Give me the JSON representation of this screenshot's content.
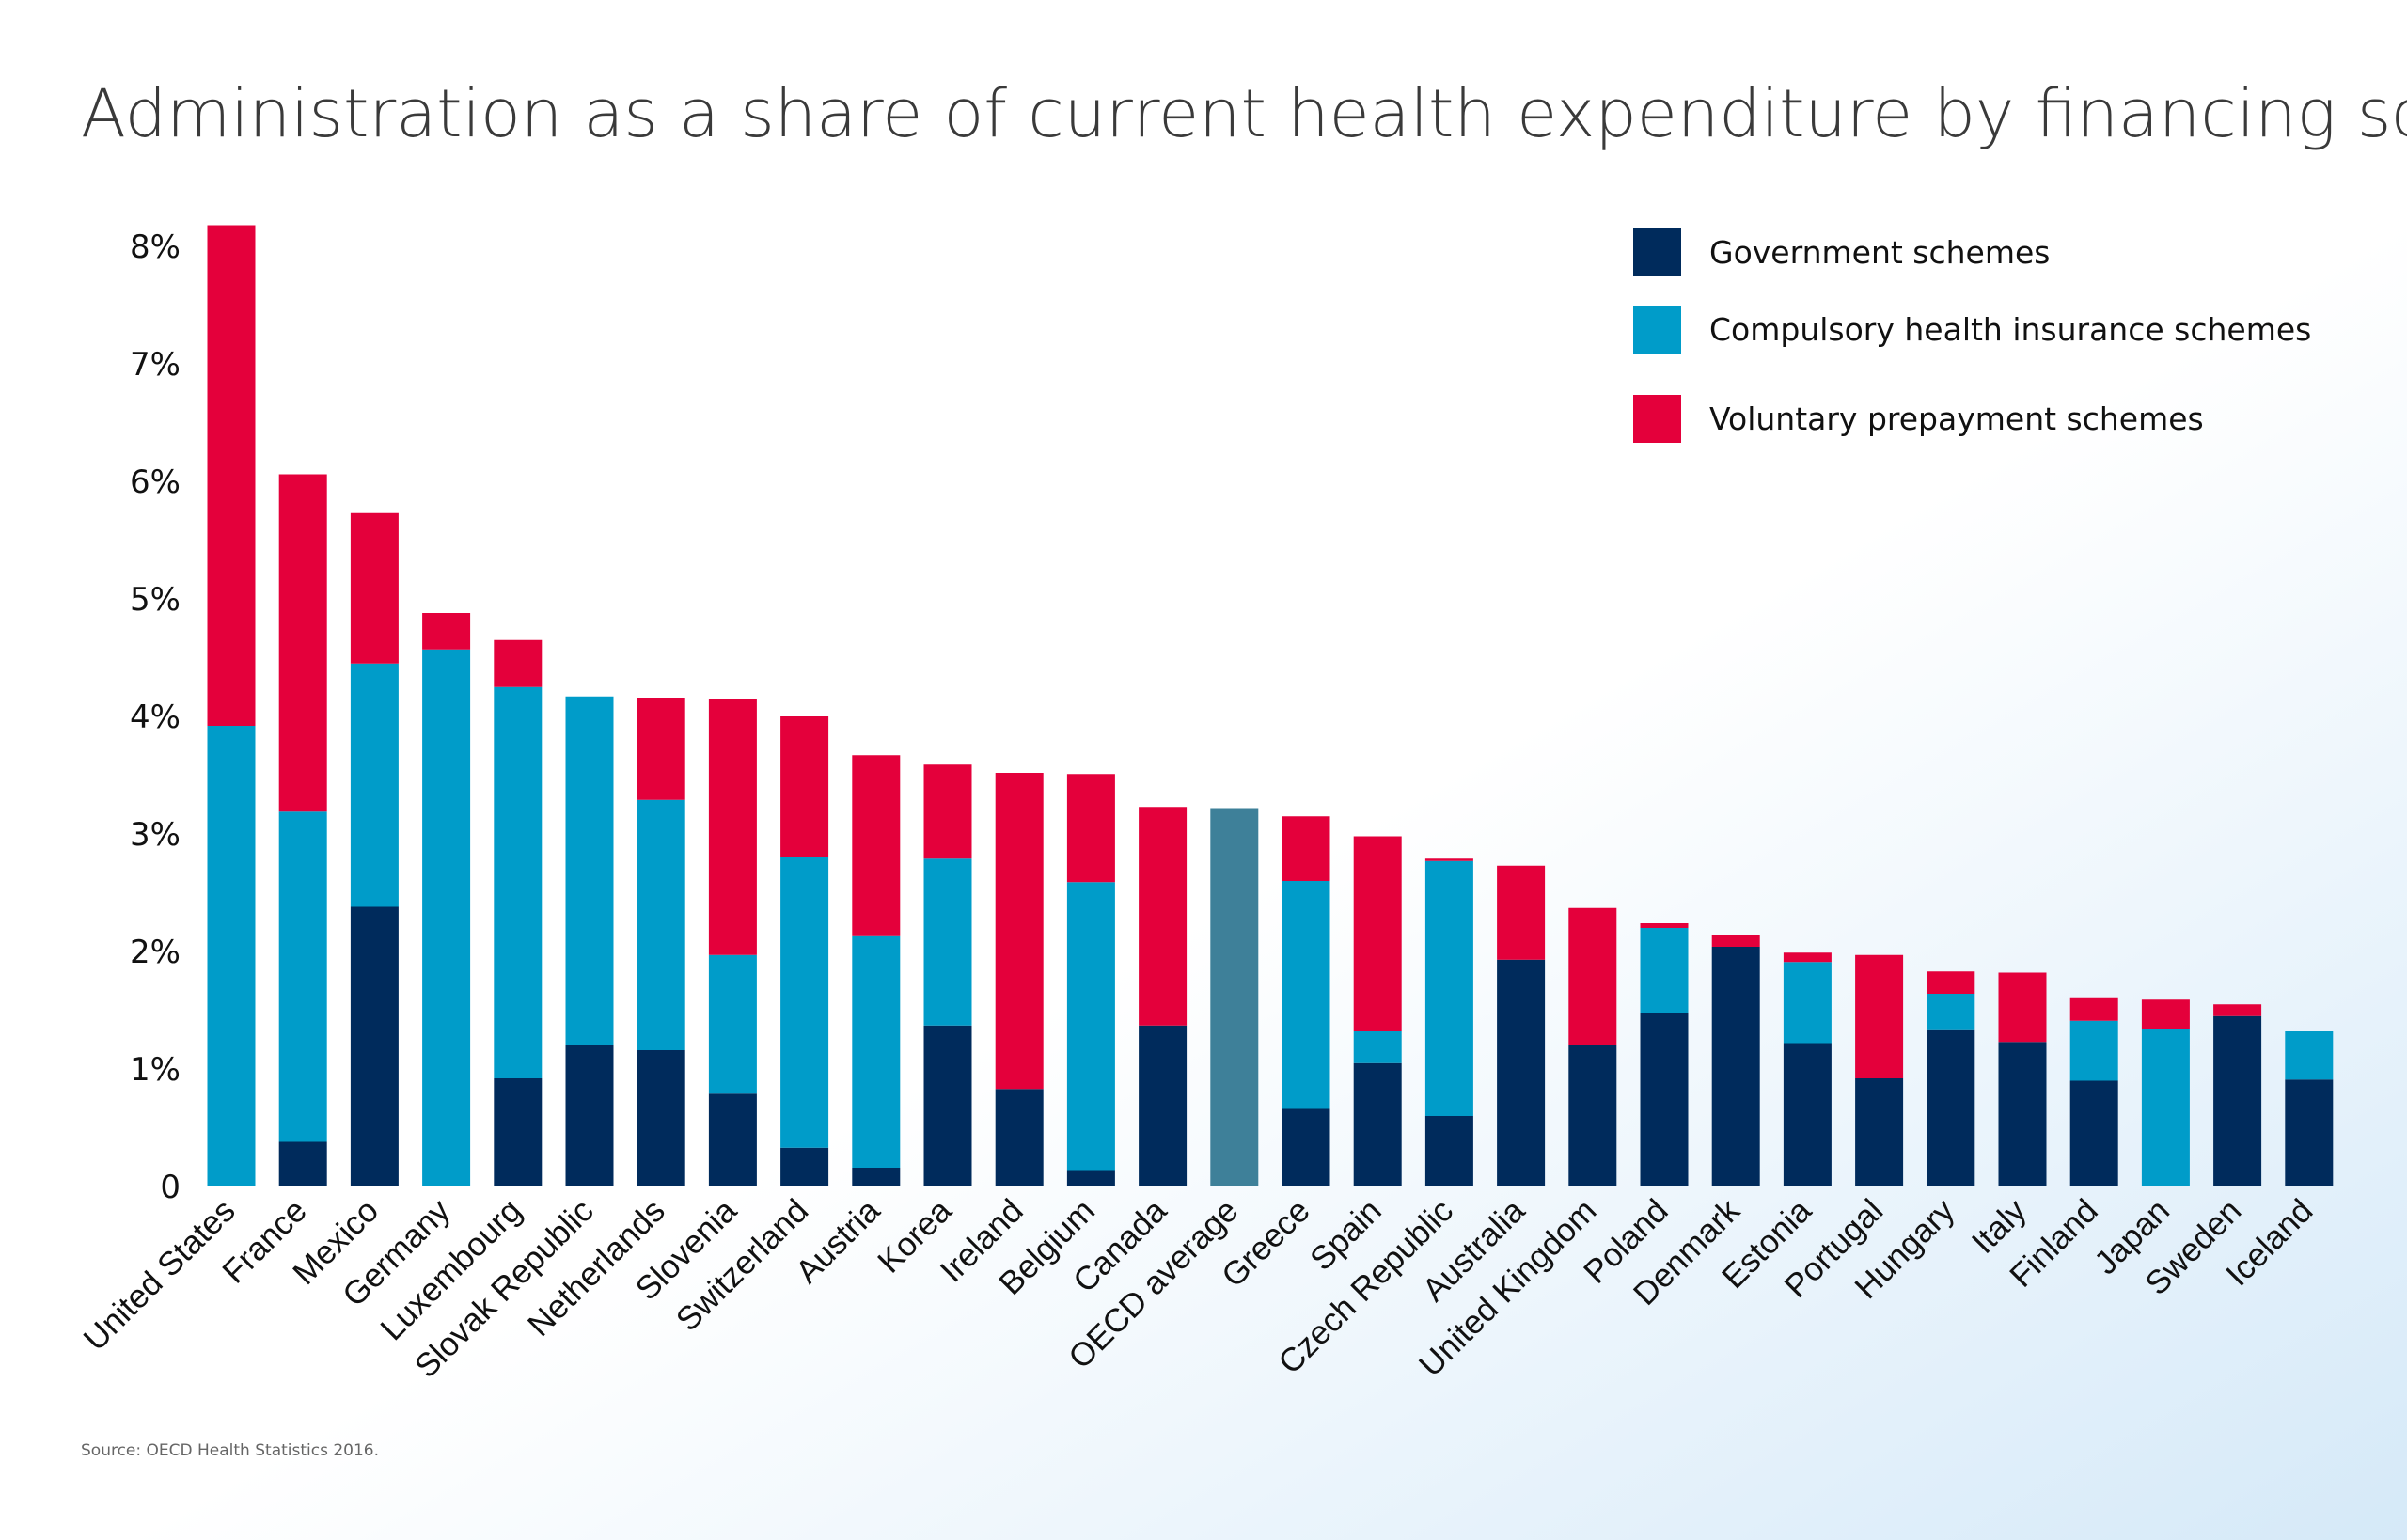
{
  "chart_data": {
    "type": "bar",
    "stacked": true,
    "title": "Administration as a share of current health expenditure by financing scheme",
    "source": "Source: OECD Health Statistics 2016.",
    "yticks": [
      "0",
      "1%",
      "2%",
      "3%",
      "4%",
      "5%",
      "6%",
      "7%",
      "8%"
    ],
    "ylim": [
      0,
      8
    ],
    "legend_position": "top-right",
    "categories": [
      "United States",
      "France",
      "Mexico",
      "Germany",
      "Luxembourg",
      "Slovak Republic",
      "Netherlands",
      "Slovenia",
      "Switzerland",
      "Austria",
      "Korea",
      "Ireland",
      "Belgium",
      "Canada",
      "OECD average",
      "Greece",
      "Spain",
      "Czech Republic",
      "Australia",
      "United Kingdom",
      "Poland",
      "Denmark",
      "Estonia",
      "Portugal",
      "Hungary",
      "Italy",
      "Finland",
      "Japan",
      "Sweden",
      "Iceland"
    ],
    "series": [
      {
        "name": "Government schemes",
        "color": "#002b5c",
        "values": [
          0,
          0.38,
          2.38,
          0,
          0.92,
          1.2,
          1.16,
          0.79,
          0.33,
          0.16,
          1.37,
          0.83,
          0.14,
          1.37,
          0,
          0.66,
          1.05,
          0.6,
          1.93,
          1.2,
          1.48,
          2.04,
          1.22,
          0.92,
          1.33,
          1.23,
          0.9,
          0,
          1.45,
          0.91
        ]
      },
      {
        "name": "Compulsory health insurance schemes",
        "color": "#009cc9",
        "values": [
          3.92,
          2.81,
          2.07,
          4.57,
          3.33,
          2.97,
          2.13,
          1.18,
          2.47,
          1.97,
          1.42,
          0,
          2.45,
          0,
          0,
          1.94,
          0.27,
          2.17,
          0,
          0,
          0.72,
          0,
          0.69,
          0,
          0.31,
          0,
          0.51,
          1.34,
          0,
          0.41
        ]
      },
      {
        "name": "Voluntary prepayment schemes",
        "color": "#e4003b",
        "values": [
          4.26,
          2.87,
          1.28,
          0.31,
          0.4,
          0,
          0.87,
          2.18,
          1.2,
          1.54,
          0.8,
          2.69,
          0.92,
          1.86,
          0,
          0.55,
          1.66,
          0.02,
          0.8,
          1.17,
          0.04,
          0.1,
          0.08,
          1.05,
          0.19,
          0.59,
          0.2,
          0.25,
          0.1,
          0
        ]
      }
    ],
    "highlight": {
      "category": "OECD average",
      "value": 3.22,
      "color": "#3e8099"
    }
  }
}
